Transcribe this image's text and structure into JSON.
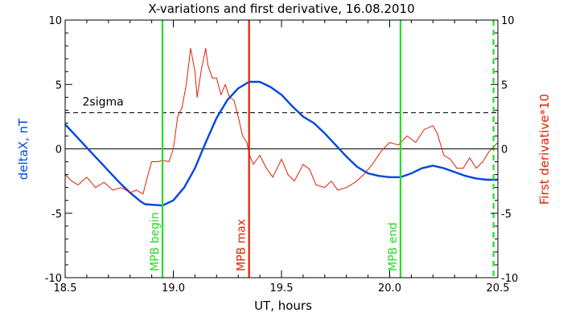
{
  "chart_data": {
    "type": "line",
    "title": "X-variations and first derivative, 16.08.2010",
    "xlabel": "UT, hours",
    "ylabel_left": "deltaX, nT",
    "ylabel_right": "First derivative*10",
    "xlim": [
      18.5,
      20.5
    ],
    "ylim": [
      -10,
      10
    ],
    "x_ticks": [
      18.5,
      19.0,
      19.5,
      20.0,
      20.5
    ],
    "x_tick_labels": [
      "18.5",
      "19.0",
      "19.5",
      "20.0",
      "20.5"
    ],
    "y_ticks": [
      -10,
      -5,
      0,
      5,
      10
    ],
    "y_tick_labels": [
      "-10",
      "-5",
      "0",
      "5",
      "10"
    ],
    "grid": false,
    "colors": {
      "deltaX": "#0047e0",
      "derivative": "#e02000",
      "green_marker": "#22dd22",
      "red_marker": "#dd2200",
      "axis": "#000000"
    },
    "series": [
      {
        "key": "deltaX",
        "x": [
          18.5,
          18.55,
          18.6,
          18.65,
          18.7,
          18.75,
          18.8,
          18.85,
          18.87,
          18.95,
          19.0,
          19.05,
          19.1,
          19.15,
          19.2,
          19.25,
          19.3,
          19.35,
          19.4,
          19.45,
          19.5,
          19.55,
          19.6,
          19.65,
          19.7,
          19.75,
          19.8,
          19.85,
          19.9,
          19.95,
          20.0,
          20.05,
          20.1,
          20.15,
          20.2,
          20.25,
          20.3,
          20.35,
          20.4,
          20.45,
          20.5
        ],
        "y": [
          1.9,
          1.0,
          0.1,
          -0.8,
          -1.7,
          -2.6,
          -3.4,
          -4.1,
          -4.3,
          -4.4,
          -4.0,
          -3.0,
          -1.5,
          0.5,
          2.4,
          3.8,
          4.7,
          5.2,
          5.2,
          4.8,
          4.2,
          3.3,
          2.5,
          2.0,
          1.2,
          0.3,
          -0.6,
          -1.4,
          -1.9,
          -2.1,
          -2.2,
          -2.2,
          -1.9,
          -1.5,
          -1.3,
          -1.5,
          -1.8,
          -2.1,
          -2.3,
          -2.4,
          -2.4
        ]
      },
      {
        "key": "derivative",
        "x": [
          18.5,
          18.53,
          18.56,
          18.6,
          18.64,
          18.68,
          18.72,
          18.76,
          18.8,
          18.83,
          18.86,
          18.88,
          18.9,
          18.93,
          18.95,
          18.98,
          19.0,
          19.02,
          19.04,
          19.06,
          19.08,
          19.1,
          19.11,
          19.13,
          19.15,
          19.16,
          19.18,
          19.2,
          19.22,
          19.24,
          19.26,
          19.28,
          19.3,
          19.32,
          19.34,
          19.35,
          19.37,
          19.4,
          19.43,
          19.46,
          19.5,
          19.53,
          19.56,
          19.6,
          19.63,
          19.66,
          19.7,
          19.73,
          19.76,
          19.8,
          19.84,
          19.88,
          19.92,
          19.96,
          20.0,
          20.04,
          20.08,
          20.12,
          20.16,
          20.2,
          20.22,
          20.25,
          20.28,
          20.31,
          20.34,
          20.37,
          20.4,
          20.43,
          20.46,
          20.5
        ],
        "y": [
          -2.0,
          -2.5,
          -2.8,
          -2.2,
          -3.0,
          -2.6,
          -3.2,
          -3.0,
          -3.4,
          -3.2,
          -3.5,
          -2.2,
          -1.0,
          -1.0,
          -0.9,
          -1.0,
          0.0,
          2.5,
          3.2,
          5.0,
          7.8,
          6.0,
          4.0,
          6.2,
          7.8,
          6.5,
          5.5,
          5.5,
          4.2,
          5.0,
          4.0,
          3.8,
          2.5,
          1.0,
          0.5,
          -0.4,
          -1.2,
          -0.5,
          -1.5,
          -2.2,
          -0.8,
          -2.0,
          -2.5,
          -1.2,
          -1.6,
          -2.8,
          -3.0,
          -2.5,
          -3.2,
          -3.0,
          -2.6,
          -2.0,
          -1.2,
          -0.2,
          0.5,
          0.3,
          1.0,
          0.5,
          1.5,
          1.8,
          1.2,
          -0.5,
          -0.8,
          -1.5,
          -1.5,
          -0.7,
          -1.5,
          -1.0,
          -0.2,
          0.5
        ]
      }
    ],
    "threshold_line": {
      "y": 2.8,
      "style": "dashed",
      "label": "2sigma",
      "label_x": 18.58
    },
    "zero_line": {
      "y": 0
    },
    "markers": [
      {
        "x": 18.95,
        "label": "MPB begin",
        "color_key": "green_marker",
        "style": "solid"
      },
      {
        "x": 19.35,
        "label": "MPB max",
        "color_key": "red_marker",
        "style": "solid"
      },
      {
        "x": 20.05,
        "label": "MPB end",
        "color_key": "green_marker",
        "style": "solid"
      },
      {
        "x": 20.48,
        "label": "",
        "color_key": "green_marker",
        "style": "dashed"
      }
    ]
  }
}
